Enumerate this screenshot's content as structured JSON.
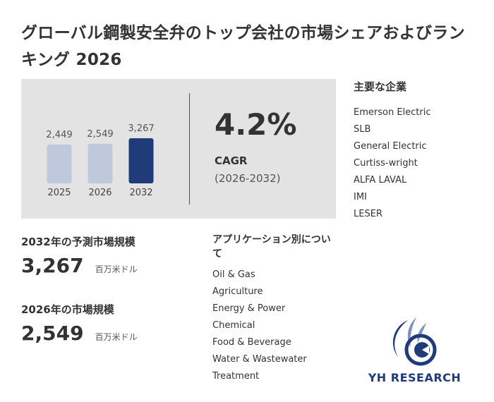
{
  "title": "グローバル鋼製安全弁のトップ会社の市場シェアおよびランキング 2026",
  "chart_data": {
    "type": "bar",
    "categories": [
      "2025",
      "2026",
      "2032"
    ],
    "values": [
      2449,
      2549,
      3267
    ],
    "value_labels": [
      "2,449",
      "2,549",
      "3,267"
    ],
    "colors": [
      "#c0c9dc",
      "#c0c9dc",
      "#1f3b79"
    ]
  },
  "cagr": {
    "value": "4.2%",
    "label": "CAGR",
    "period": "(2026-2032)"
  },
  "companies": {
    "title": "主要な企業",
    "items": [
      "Emerson Electric",
      "SLB",
      "General Electric",
      "Curtiss-wright",
      "ALFA LAVAL",
      "IMI",
      "LESER"
    ]
  },
  "forecast": {
    "title": "2032年の予測市場規模",
    "value": "3,267",
    "unit": "百万米ドル"
  },
  "current": {
    "title": "2026年の市場規模",
    "value": "2,549",
    "unit": "百万米ドル"
  },
  "applications": {
    "title": "アプリケーション別について",
    "items": [
      "Oil & Gas",
      "Agriculture",
      "Energy & Power",
      "Chemical",
      "Food & Beverage",
      "Water & Wastewater",
      "Treatment"
    ]
  },
  "logo": {
    "text": "YH RESEARCH"
  }
}
